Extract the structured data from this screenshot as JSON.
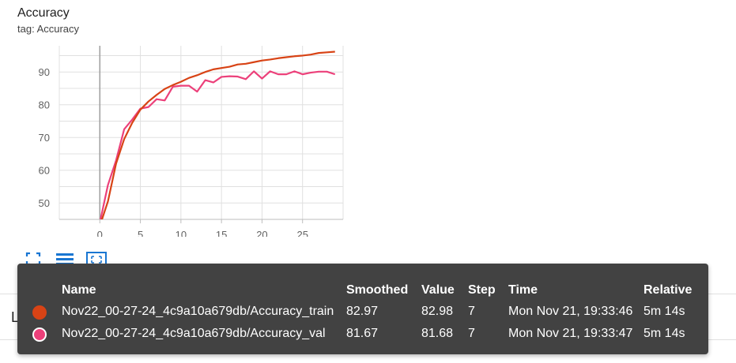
{
  "card": {
    "title": "Accuracy",
    "subtitle": "tag: Accuracy"
  },
  "chart_data": {
    "type": "line",
    "x": [
      0,
      1,
      2,
      3,
      4,
      5,
      6,
      7,
      8,
      9,
      10,
      11,
      12,
      13,
      14,
      15,
      16,
      17,
      18,
      19,
      20,
      21,
      22,
      23,
      24,
      25,
      26,
      27,
      28,
      29
    ],
    "xticks": [
      0,
      5,
      10,
      15,
      20,
      25
    ],
    "yticks": [
      50,
      60,
      70,
      80,
      90
    ],
    "xlim": [
      -5,
      30
    ],
    "ylim": [
      45,
      98
    ],
    "grid": true,
    "series": [
      {
        "name": "Nov22_00-27-24_4c9a10a679db/Accuracy_train",
        "color": "#d84315",
        "values": [
          43,
          50.5,
          62.0,
          69.5,
          74.5,
          78.5,
          81.0,
          83.0,
          84.8,
          86.0,
          87.0,
          88.2,
          89.0,
          90.0,
          90.8,
          91.2,
          91.6,
          92.3,
          92.5,
          93.0,
          93.5,
          93.8,
          94.2,
          94.5,
          94.8,
          95.0,
          95.3,
          95.8,
          96.0,
          96.2
        ]
      },
      {
        "name": "Nov22_00-27-24_4c9a10a679db/Accuracy_val",
        "color": "#ec407a",
        "values": [
          44,
          55.5,
          63.0,
          72.5,
          75.5,
          78.8,
          79.3,
          81.7,
          81.3,
          85.5,
          85.8,
          85.8,
          84.0,
          87.5,
          86.8,
          88.5,
          88.7,
          88.6,
          87.8,
          90.2,
          88.0,
          90.2,
          89.3,
          89.3,
          90.2,
          89.3,
          89.8,
          90.1,
          90.1,
          89.3
        ]
      }
    ]
  },
  "toolbar": {
    "icons": [
      "fullscreen-icon",
      "toggle-log-scale-icon",
      "fit-domain-icon"
    ]
  },
  "tooltip": {
    "headers": {
      "name": "Name",
      "smoothed": "Smoothed",
      "value": "Value",
      "step": "Step",
      "time": "Time",
      "relative": "Relative"
    },
    "rows": [
      {
        "name": "Nov22_00-27-24_4c9a10a679db/Accuracy_train",
        "smoothed": "82.97",
        "value": "82.98",
        "step": "7",
        "time": "Mon Nov 21, 19:33:46",
        "relative": "5m 14s",
        "color": "#d84315"
      },
      {
        "name": "Nov22_00-27-24_4c9a10a679db/Accuracy_val",
        "smoothed": "81.67",
        "value": "81.68",
        "step": "7",
        "time": "Mon Nov 21, 19:33:47",
        "relative": "5m 14s",
        "color": "#ec407a"
      }
    ]
  },
  "next_card": {
    "title": "Loss"
  }
}
